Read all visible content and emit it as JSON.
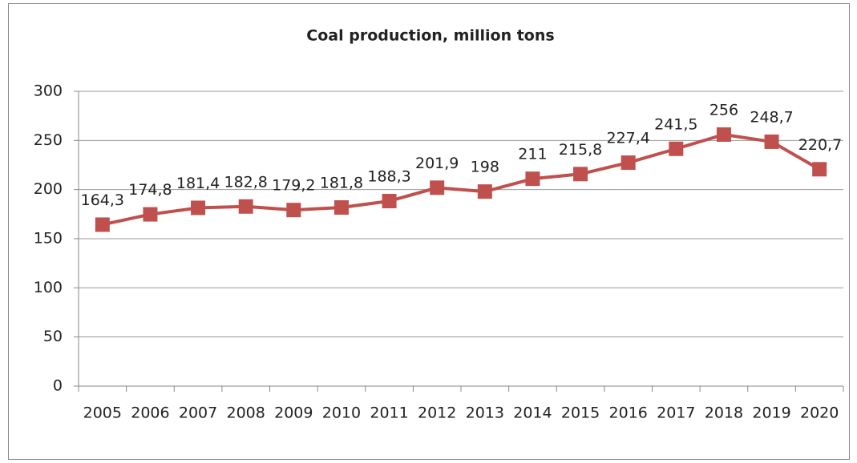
{
  "chart_data": {
    "type": "line",
    "title": "Coal production,  million tons",
    "categories": [
      "2005",
      "2006",
      "2007",
      "2008",
      "2009",
      "2010",
      "2011",
      "2012",
      "2013",
      "2014",
      "2015",
      "2016",
      "2017",
      "2018",
      "2019",
      "2020"
    ],
    "series": [
      {
        "name": "Coal production",
        "color": "#c0504d",
        "values": [
          164.3,
          174.8,
          181.4,
          182.8,
          179.2,
          181.8,
          188.3,
          201.9,
          198,
          211,
          215.8,
          227.4,
          241.5,
          256,
          248.7,
          220.7
        ],
        "value_labels": [
          "164,3",
          "174,8",
          "181,4",
          "182,8",
          "179,2",
          "181,8",
          "188,3",
          "201,9",
          "198",
          "211",
          "215,8",
          "227,4",
          "241,5",
          "256",
          "248,7",
          "220,7"
        ]
      }
    ],
    "ylim": [
      0,
      300
    ],
    "yticks": [
      0,
      50,
      100,
      150,
      200,
      250,
      300
    ],
    "grid": true
  }
}
